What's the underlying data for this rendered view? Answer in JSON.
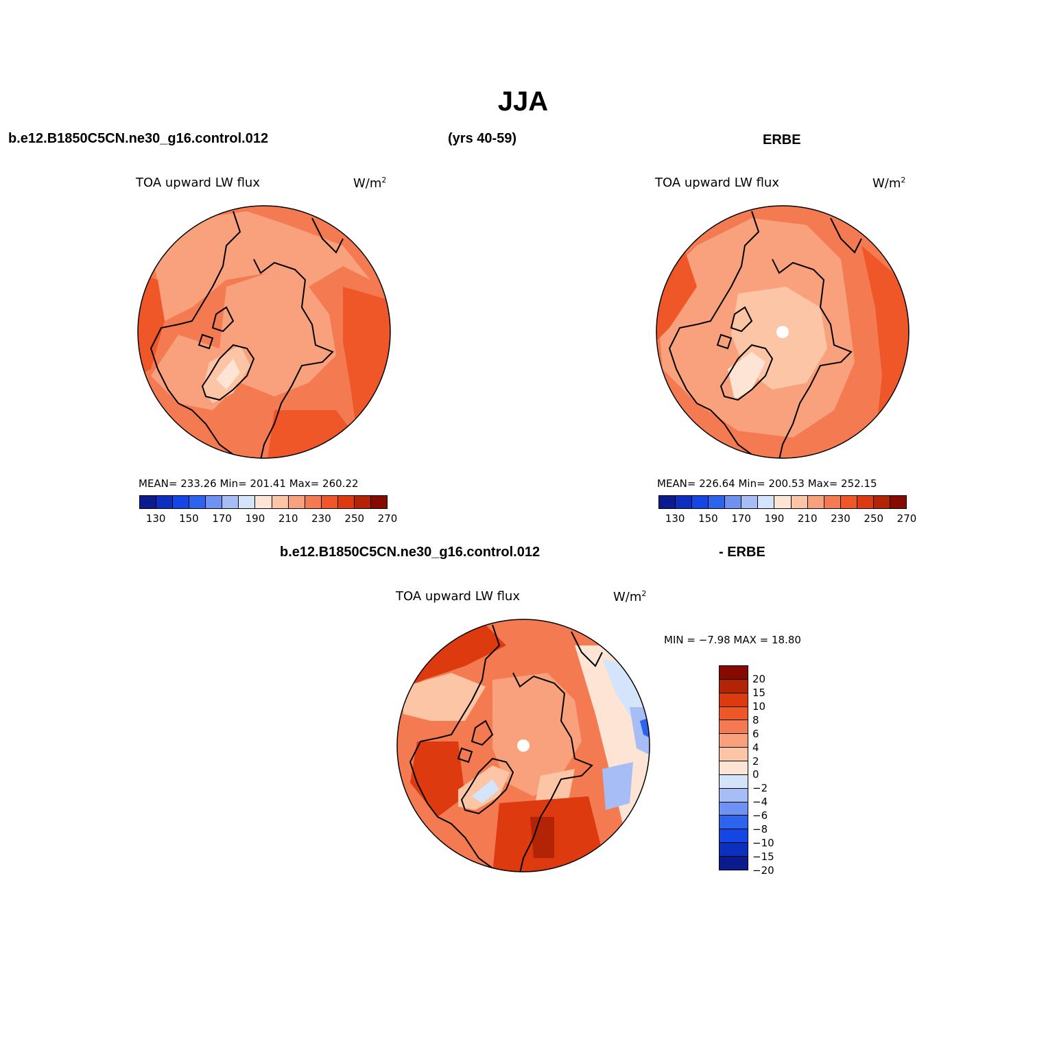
{
  "page_title": "JJA",
  "header": {
    "case_name": "b.e12.B1850C5CN.ne30_g16.control.012",
    "years": "(yrs 40-59)",
    "obs_name": "ERBE"
  },
  "diff_header": {
    "case_name": "b.e12.B1850C5CN.ne30_g16.control.012",
    "minus_obs": "- ERBE"
  },
  "panels": [
    {
      "variable": "TOA upward LW flux",
      "units_base": "W/m",
      "units_sup": "2",
      "stats": "MEAN= 233.26   Min= 201.41   Max= 260.22"
    },
    {
      "variable": "TOA upward LW flux",
      "units_base": "W/m",
      "units_sup": "2",
      "stats": "MEAN= 226.64   Min= 200.53   Max= 252.15"
    },
    {
      "variable": "TOA upward LW flux",
      "units_base": "W/m",
      "units_sup": "2",
      "stats": "MIN =   −7.98 MAX =   18.80"
    }
  ],
  "colorbar_main": {
    "colors": [
      "#0b1a8c",
      "#0c2fbf",
      "#1446e6",
      "#2d64ee",
      "#6d92f2",
      "#a6bdf6",
      "#d4e4fa",
      "#fde4d4",
      "#fcc5a6",
      "#f8a17c",
      "#f47a52",
      "#ef5628",
      "#dd3a10",
      "#b32306",
      "#860a00"
    ],
    "tick_labels": [
      "130",
      "150",
      "170",
      "190",
      "210",
      "230",
      "250",
      "270"
    ]
  },
  "colorbar_diff": {
    "colors": [
      "#860a00",
      "#b32306",
      "#dd3a10",
      "#ef5628",
      "#f47a52",
      "#f8a17c",
      "#fcc5a6",
      "#fde4d4",
      "#d4e4fa",
      "#a6bdf6",
      "#6d92f2",
      "#2d64ee",
      "#1446e6",
      "#0c2fbf",
      "#0b1a8c"
    ],
    "tick_labels": [
      "20",
      "15",
      "10",
      "8",
      "6",
      "4",
      "2",
      "0",
      "−2",
      "−4",
      "−6",
      "−8",
      "−10",
      "−15",
      "−20"
    ]
  }
}
